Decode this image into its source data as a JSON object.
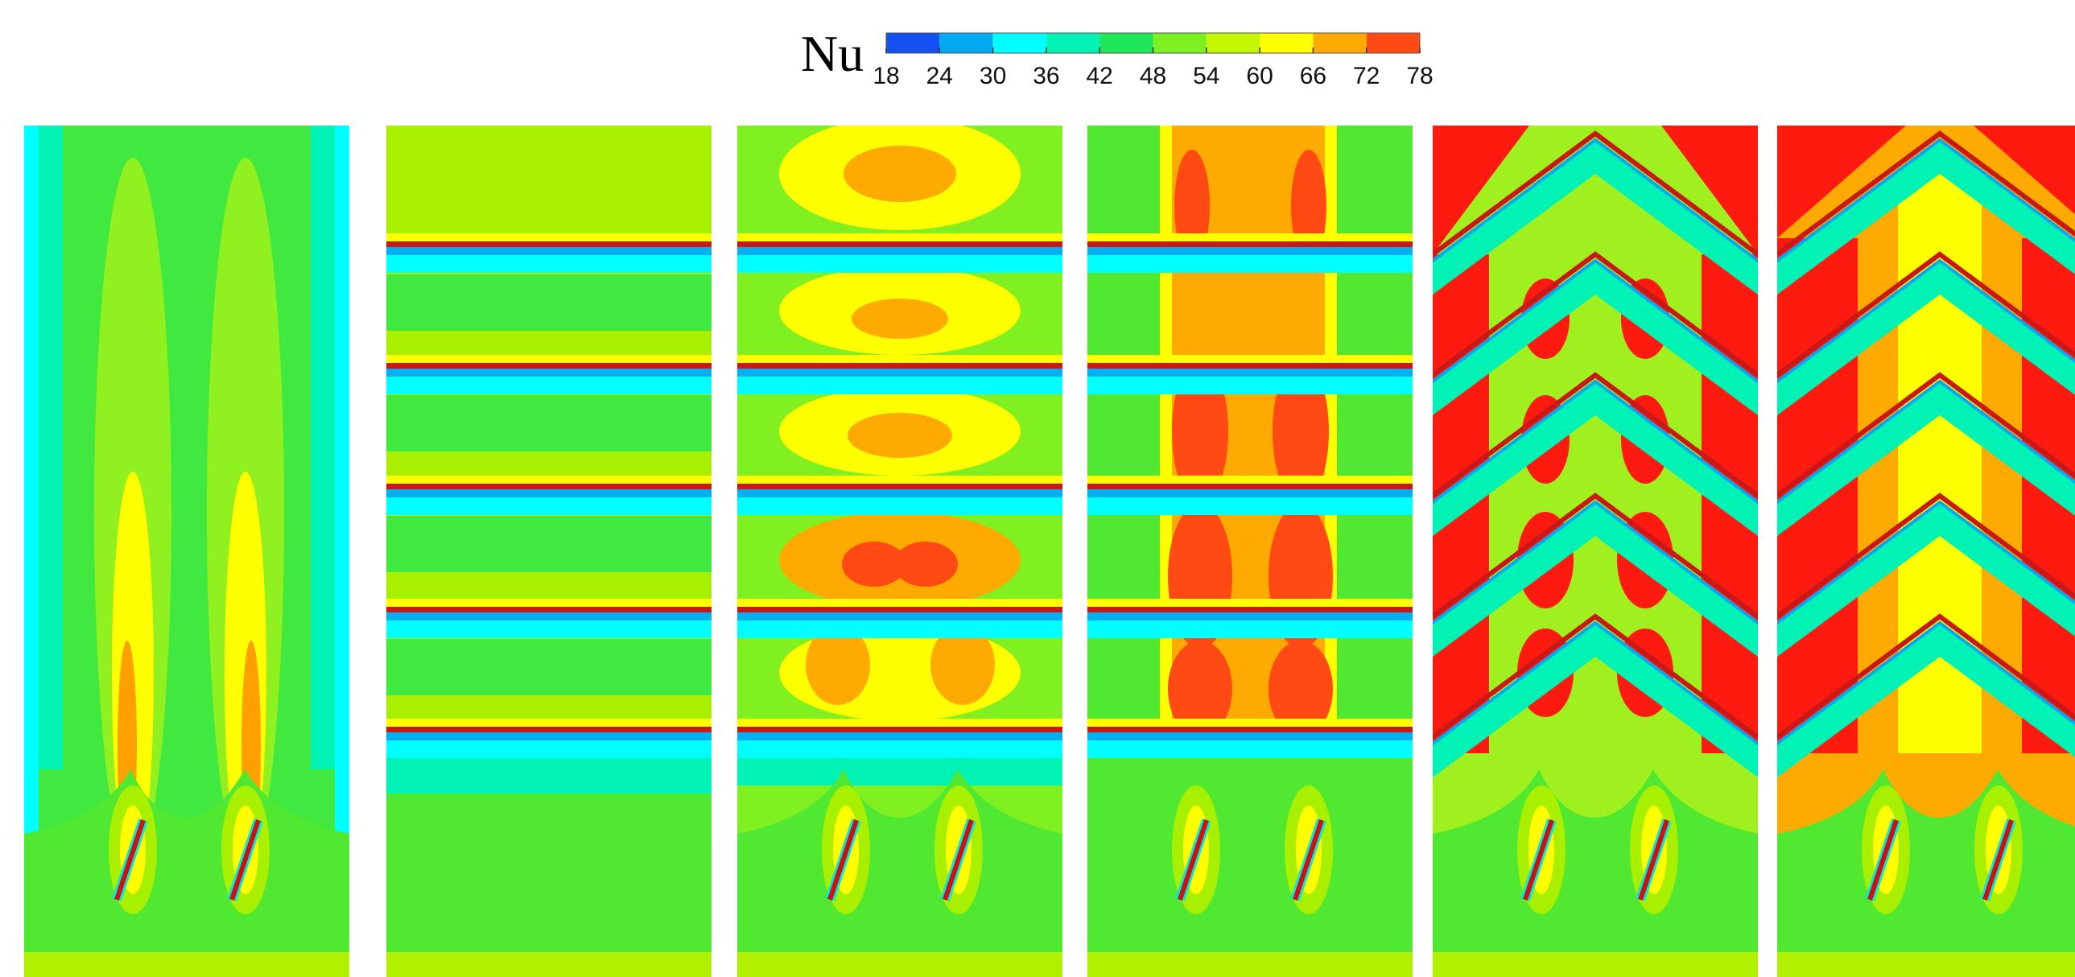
{
  "legend": {
    "title": "Nu",
    "ticks": [
      18,
      24,
      30,
      36,
      42,
      48,
      54,
      60,
      66,
      72,
      78
    ],
    "colors": [
      "#1450f0",
      "#00aaf2",
      "#00ffff",
      "#00f2b4",
      "#1ee85a",
      "#7cf020",
      "#c4f800",
      "#ffff00",
      "#ffaa00",
      "#ff4a14"
    ]
  }
}
